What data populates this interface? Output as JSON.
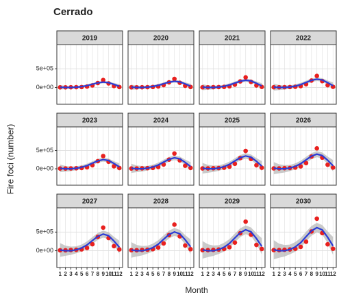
{
  "chart_data": {
    "type": "scatter",
    "title": "Cerrado",
    "x_label": "Month",
    "y_label": "Fire foci (number)",
    "x": [
      1,
      2,
      3,
      4,
      5,
      6,
      7,
      8,
      9,
      10,
      11,
      12
    ],
    "xlim": [
      0.4,
      12.6
    ],
    "xticks": [
      1,
      2,
      3,
      4,
      5,
      6,
      7,
      8,
      9,
      10,
      11,
      12
    ],
    "ylim": [
      -450000,
      1150000
    ],
    "yticks": [
      {
        "value": 0,
        "label": "0e+00"
      },
      {
        "value": 500000,
        "label": "5e+05"
      }
    ],
    "grid": true,
    "point_color": "#e8201e",
    "line_color": "#2a3bd6",
    "band_color": "#bdbdbd",
    "panels": [
      {
        "title": "2019",
        "values": [
          4000,
          4000,
          6000,
          8000,
          12000,
          24000,
          56000,
          120000,
          200000,
          110000,
          40000,
          12000
        ],
        "smooth": [
          6000,
          0,
          0,
          8000,
          24000,
          50000,
          88000,
          124000,
          144000,
          130000,
          84000,
          30000
        ],
        "se": [
          60000,
          44000,
          36000,
          30000,
          30000,
          30000,
          30000,
          30000,
          30000,
          30000,
          36000,
          56000
        ]
      },
      {
        "title": "2020",
        "values": [
          5000,
          5000,
          7000,
          9000,
          14000,
          28000,
          64000,
          138000,
          230000,
          127000,
          46000,
          14000
        ],
        "smooth": [
          7000,
          0,
          0,
          9000,
          28000,
          58000,
          101000,
          143000,
          166000,
          150000,
          97000,
          35000
        ],
        "se": [
          69000,
          51000,
          41000,
          35000,
          35000,
          35000,
          35000,
          35000,
          35000,
          35000,
          41000,
          64000
        ]
      },
      {
        "title": "2021",
        "values": [
          5000,
          5000,
          8000,
          11000,
          16000,
          32000,
          76000,
          162000,
          270000,
          149000,
          54000,
          16000
        ],
        "smooth": [
          8000,
          0,
          0,
          11000,
          32000,
          68000,
          119000,
          167000,
          194000,
          176000,
          113000,
          41000
        ],
        "se": [
          81000,
          59000,
          49000,
          41000,
          41000,
          41000,
          41000,
          41000,
          41000,
          41000,
          49000,
          76000
        ]
      },
      {
        "title": "2022",
        "values": [
          6000,
          6000,
          9000,
          12000,
          19000,
          37000,
          87000,
          186000,
          310000,
          171000,
          62000,
          19000
        ],
        "smooth": [
          9000,
          0,
          0,
          12000,
          37000,
          78000,
          136000,
          192000,
          223000,
          202000,
          130000,
          47000
        ],
        "se": [
          93000,
          68000,
          56000,
          47000,
          47000,
          47000,
          47000,
          47000,
          47000,
          47000,
          56000,
          87000
        ]
      },
      {
        "title": "2023",
        "values": [
          7000,
          7000,
          11000,
          14000,
          21000,
          42000,
          98000,
          210000,
          350000,
          193000,
          70000,
          21000
        ],
        "smooth": [
          11000,
          0,
          0,
          14000,
          42000,
          88000,
          154000,
          217000,
          252000,
          228000,
          147000,
          53000
        ],
        "se": [
          105000,
          77000,
          63000,
          53000,
          53000,
          53000,
          53000,
          53000,
          53000,
          53000,
          63000,
          98000
        ]
      },
      {
        "title": "2024",
        "values": [
          8000,
          8000,
          13000,
          17000,
          25000,
          50000,
          118000,
          252000,
          420000,
          231000,
          84000,
          25000
        ],
        "smooth": [
          13000,
          0,
          0,
          17000,
          50000,
          105000,
          185000,
          260000,
          302000,
          273000,
          176000,
          63000
        ],
        "se": [
          126000,
          92000,
          76000,
          63000,
          63000,
          63000,
          63000,
          63000,
          63000,
          63000,
          76000,
          118000
        ]
      },
      {
        "title": "2025",
        "values": [
          10000,
          10000,
          15000,
          20000,
          29000,
          59000,
          137000,
          294000,
          490000,
          270000,
          98000,
          29000
        ],
        "smooth": [
          15000,
          0,
          0,
          20000,
          59000,
          123000,
          216000,
          304000,
          353000,
          319000,
          206000,
          74000
        ],
        "se": [
          147000,
          108000,
          88000,
          74000,
          74000,
          74000,
          74000,
          74000,
          74000,
          74000,
          88000,
          137000
        ]
      },
      {
        "title": "2026",
        "values": [
          11000,
          11000,
          17000,
          22000,
          34000,
          67000,
          157000,
          336000,
          560000,
          308000,
          112000,
          34000
        ],
        "smooth": [
          17000,
          0,
          0,
          22000,
          67000,
          140000,
          246000,
          347000,
          403000,
          364000,
          235000,
          84000
        ],
        "se": [
          168000,
          123000,
          101000,
          84000,
          84000,
          84000,
          84000,
          84000,
          84000,
          84000,
          101000,
          157000
        ]
      },
      {
        "title": "2027",
        "values": [
          12000,
          12000,
          19000,
          25000,
          37000,
          74000,
          174000,
          372000,
          620000,
          341000,
          124000,
          37000
        ],
        "smooth": [
          19000,
          0,
          0,
          25000,
          74000,
          155000,
          273000,
          384000,
          446000,
          403000,
          260000,
          93000
        ],
        "se": [
          186000,
          136000,
          112000,
          93000,
          93000,
          93000,
          93000,
          93000,
          93000,
          93000,
          112000,
          174000
        ]
      },
      {
        "title": "2028",
        "values": [
          14000,
          14000,
          21000,
          28000,
          42000,
          84000,
          196000,
          420000,
          700000,
          385000,
          140000,
          42000
        ],
        "smooth": [
          21000,
          0,
          0,
          28000,
          84000,
          175000,
          308000,
          434000,
          504000,
          455000,
          294000,
          105000
        ],
        "se": [
          210000,
          154000,
          126000,
          105000,
          105000,
          105000,
          105000,
          105000,
          105000,
          105000,
          126000,
          196000
        ]
      },
      {
        "title": "2029",
        "values": [
          16000,
          16000,
          23000,
          31000,
          47000,
          94000,
          218000,
          468000,
          780000,
          429000,
          156000,
          47000
        ],
        "smooth": [
          23000,
          0,
          0,
          31000,
          94000,
          195000,
          343000,
          484000,
          562000,
          507000,
          328000,
          117000
        ],
        "se": [
          234000,
          172000,
          140000,
          117000,
          117000,
          117000,
          117000,
          117000,
          117000,
          117000,
          140000,
          218000
        ]
      },
      {
        "title": "2030",
        "values": [
          17000,
          17000,
          26000,
          34000,
          52000,
          103000,
          241000,
          516000,
          860000,
          473000,
          172000,
          52000
        ],
        "smooth": [
          26000,
          0,
          0,
          34000,
          103000,
          215000,
          378000,
          533000,
          619000,
          559000,
          361000,
          129000
        ],
        "se": [
          258000,
          189000,
          155000,
          129000,
          129000,
          129000,
          129000,
          129000,
          129000,
          129000,
          155000,
          241000
        ]
      }
    ]
  }
}
